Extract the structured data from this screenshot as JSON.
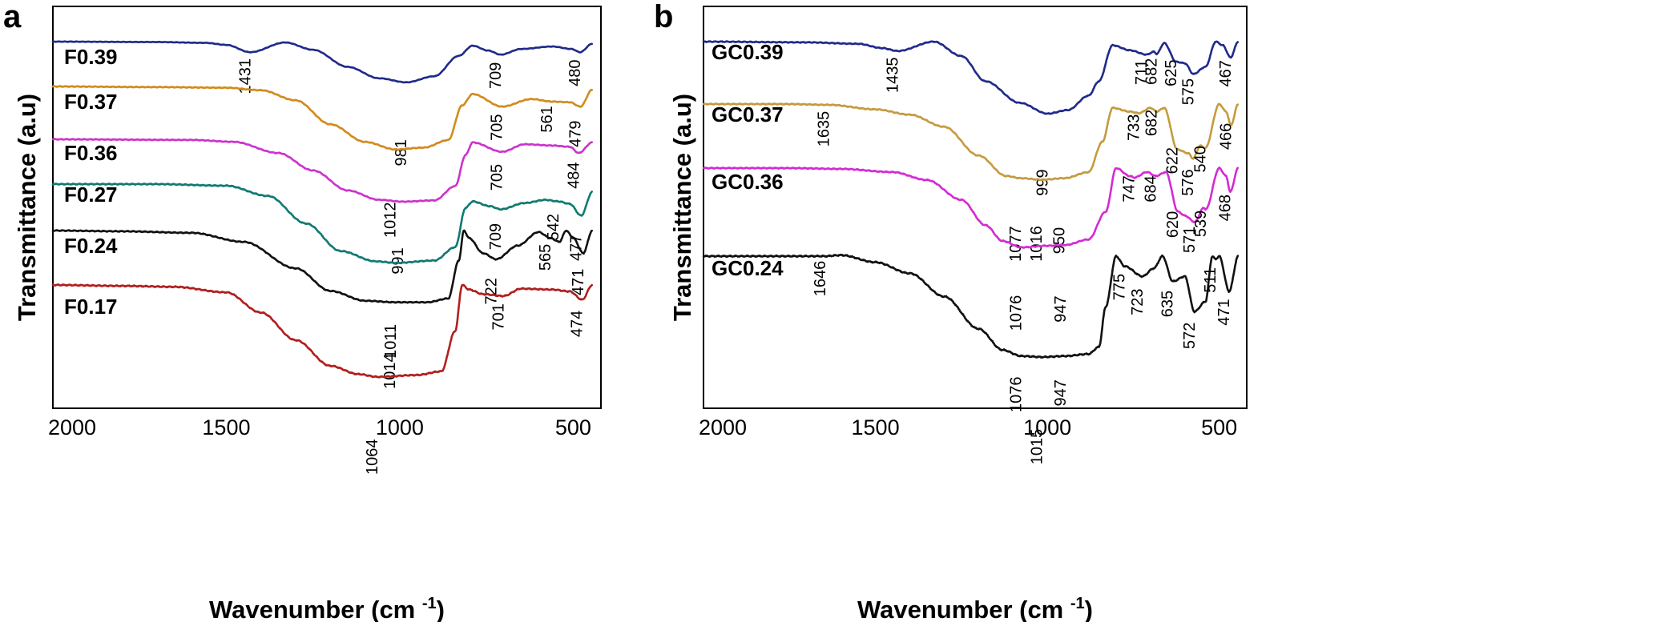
{
  "chart_data": [
    {
      "type": "line",
      "panel_letter": "a",
      "xlabel": "Wavenumber (cm",
      "xlabel_sup": "-1",
      "xlabel_close": ")",
      "ylabel": "Transmittance (a.u)",
      "xlim": [
        2000,
        420
      ],
      "x_ticks": [
        "2000",
        "1500",
        "1000",
        "500"
      ],
      "x_tick_values": [
        2000,
        1500,
        1000,
        500
      ],
      "series": [
        {
          "name": "F0.39",
          "color": "#1f2a8a",
          "baseline": 0.0,
          "depth": 0.62,
          "peaks": [
            "1431",
            "981",
            "709",
            "480"
          ],
          "profile": [
            [
              2000,
              0
            ],
            [
              1700,
              0.01
            ],
            [
              1560,
              0.03
            ],
            [
              1500,
              0.08
            ],
            [
              1431,
              0.26
            ],
            [
              1330,
              0.02
            ],
            [
              1250,
              0.2
            ],
            [
              1150,
              0.62
            ],
            [
              1060,
              0.9
            ],
            [
              981,
              1.0
            ],
            [
              900,
              0.85
            ],
            [
              830,
              0.35
            ],
            [
              790,
              0.1
            ],
            [
              745,
              0.22
            ],
            [
              709,
              0.32
            ],
            [
              650,
              0.18
            ],
            [
              560,
              0.12
            ],
            [
              505,
              0.18
            ],
            [
              480,
              0.26
            ],
            [
              445,
              0.05
            ]
          ]
        },
        {
          "name": "F0.37",
          "color": "#d18b1d",
          "baseline": 0.64,
          "depth": 0.96,
          "peaks": [
            "1012",
            "705",
            "561",
            "479"
          ],
          "profile": [
            [
              2000,
              0
            ],
            [
              1700,
              0.01
            ],
            [
              1500,
              0.02
            ],
            [
              1400,
              0.06
            ],
            [
              1300,
              0.22
            ],
            [
              1200,
              0.6
            ],
            [
              1100,
              0.88
            ],
            [
              1012,
              1.0
            ],
            [
              930,
              0.97
            ],
            [
              860,
              0.85
            ],
            [
              820,
              0.3
            ],
            [
              790,
              0.12
            ],
            [
              705,
              0.32
            ],
            [
              620,
              0.2
            ],
            [
              561,
              0.24
            ],
            [
              510,
              0.25
            ],
            [
              479,
              0.32
            ],
            [
              445,
              0.05
            ]
          ]
        },
        {
          "name": "F0.36",
          "color": "#cc33cc",
          "baseline": 0.98,
          "depth": 0.95,
          "peaks": [
            "991",
            "705",
            "484"
          ],
          "profile": [
            [
              2000,
              0
            ],
            [
              1600,
              0.01
            ],
            [
              1480,
              0.04
            ],
            [
              1350,
              0.22
            ],
            [
              1250,
              0.5
            ],
            [
              1150,
              0.82
            ],
            [
              1060,
              0.97
            ],
            [
              991,
              1.0
            ],
            [
              900,
              0.98
            ],
            [
              840,
              0.75
            ],
            [
              810,
              0.25
            ],
            [
              790,
              0.05
            ],
            [
              705,
              0.2
            ],
            [
              640,
              0.08
            ],
            [
              560,
              0.1
            ],
            [
              510,
              0.12
            ],
            [
              484,
              0.22
            ],
            [
              445,
              0.05
            ]
          ]
        },
        {
          "name": "F0.27",
          "color": "#107a72",
          "baseline": 1.0,
          "depth": 1.2,
          "peaks": [
            "1011",
            "709",
            "542",
            "477"
          ],
          "profile": [
            [
              2000,
              0
            ],
            [
              1700,
              0.0
            ],
            [
              1500,
              0.02
            ],
            [
              1380,
              0.15
            ],
            [
              1270,
              0.5
            ],
            [
              1170,
              0.85
            ],
            [
              1070,
              0.98
            ],
            [
              1011,
              1.0
            ],
            [
              900,
              0.97
            ],
            [
              840,
              0.8
            ],
            [
              810,
              0.3
            ],
            [
              790,
              0.22
            ],
            [
              740,
              0.28
            ],
            [
              709,
              0.32
            ],
            [
              640,
              0.24
            ],
            [
              580,
              0.2
            ],
            [
              542,
              0.22
            ],
            [
              510,
              0.25
            ],
            [
              477,
              0.4
            ],
            [
              445,
              0.1
            ]
          ]
        },
        {
          "name": "F0.24",
          "color": "#111111",
          "baseline": 1.72,
          "depth": 1.15,
          "peaks": [
            "1014",
            "722",
            "565",
            "471"
          ],
          "profile": [
            [
              2000,
              0
            ],
            [
              1800,
              0.01
            ],
            [
              1600,
              0.03
            ],
            [
              1450,
              0.15
            ],
            [
              1300,
              0.5
            ],
            [
              1200,
              0.8
            ],
            [
              1100,
              0.93
            ],
            [
              1014,
              0.95
            ],
            [
              920,
              0.95
            ],
            [
              860,
              0.9
            ],
            [
              830,
              0.4
            ],
            [
              815,
              0.0
            ],
            [
              800,
              0.1
            ],
            [
              760,
              0.3
            ],
            [
              722,
              0.38
            ],
            [
              660,
              0.2
            ],
            [
              600,
              0.02
            ],
            [
              565,
              0.1
            ],
            [
              540,
              0.15
            ],
            [
              520,
              0.0
            ],
            [
              500,
              0.1
            ],
            [
              471,
              0.3
            ],
            [
              445,
              0.0
            ]
          ]
        },
        {
          "name": "F0.17",
          "color": "#b01f1f",
          "baseline": 2.12,
          "depth": 1.4,
          "peaks": [
            "1064",
            "701",
            "474"
          ],
          "profile": [
            [
              2000,
              0
            ],
            [
              1800,
              0.01
            ],
            [
              1650,
              0.02
            ],
            [
              1500,
              0.08
            ],
            [
              1400,
              0.3
            ],
            [
              1300,
              0.6
            ],
            [
              1200,
              0.88
            ],
            [
              1120,
              0.97
            ],
            [
              1064,
              1.0
            ],
            [
              950,
              0.98
            ],
            [
              880,
              0.94
            ],
            [
              840,
              0.5
            ],
            [
              820,
              0.0
            ],
            [
              800,
              0.05
            ],
            [
              760,
              0.1
            ],
            [
              701,
              0.12
            ],
            [
              650,
              0.04
            ],
            [
              560,
              0.05
            ],
            [
              510,
              0.07
            ],
            [
              474,
              0.16
            ],
            [
              445,
              0.0
            ]
          ]
        }
      ]
    },
    {
      "type": "line",
      "panel_letter": "b",
      "xlabel": "Wavenumber (cm",
      "xlabel_sup": "-1",
      "xlabel_close": ")",
      "ylabel": "Transmittance (a.u)",
      "xlim": [
        2000,
        420
      ],
      "x_ticks": [
        "2000",
        "1500",
        "1000",
        "500"
      ],
      "x_tick_values": [
        2000,
        1500,
        1000,
        500
      ],
      "series": [
        {
          "name": "GC0.39",
          "color": "#1f2a8a",
          "baseline": 0.0,
          "depth": 1.0,
          "peaks": [
            "1435",
            "999",
            "711",
            "682",
            "625",
            "575",
            "467"
          ],
          "profile": [
            [
              2000,
              0
            ],
            [
              1700,
              0.01
            ],
            [
              1550,
              0.03
            ],
            [
              1480,
              0.09
            ],
            [
              1435,
              0.13
            ],
            [
              1330,
              0.0
            ],
            [
              1250,
              0.2
            ],
            [
              1180,
              0.55
            ],
            [
              1080,
              0.85
            ],
            [
              999,
              1.0
            ],
            [
              940,
              0.95
            ],
            [
              880,
              0.75
            ],
            [
              850,
              0.55
            ],
            [
              810,
              0.05
            ],
            [
              760,
              0.12
            ],
            [
              711,
              0.18
            ],
            [
              690,
              0.14
            ],
            [
              682,
              0.17
            ],
            [
              660,
              0.02
            ],
            [
              625,
              0.28
            ],
            [
              600,
              0.3
            ],
            [
              575,
              0.45
            ],
            [
              540,
              0.35
            ],
            [
              510,
              0.0
            ],
            [
              490,
              0.05
            ],
            [
              467,
              0.22
            ],
            [
              445,
              0.0
            ]
          ]
        },
        {
          "name": "GC0.37",
          "color": "#c49b3d",
          "baseline": 0.76,
          "depth": 1.05,
          "peaks": [
            "1635",
            "1077",
            "1016",
            "950",
            "733",
            "682",
            "622",
            "576",
            "540",
            "466"
          ],
          "profile": [
            [
              2000,
              0
            ],
            [
              1760,
              0.0
            ],
            [
              1635,
              0.01
            ],
            [
              1500,
              0.07
            ],
            [
              1400,
              0.14
            ],
            [
              1300,
              0.3
            ],
            [
              1200,
              0.68
            ],
            [
              1120,
              0.95
            ],
            [
              1077,
              0.98
            ],
            [
              1016,
              1.0
            ],
            [
              950,
              0.98
            ],
            [
              880,
              0.9
            ],
            [
              840,
              0.5
            ],
            [
              810,
              0.05
            ],
            [
              760,
              0.1
            ],
            [
              733,
              0.12
            ],
            [
              700,
              0.05
            ],
            [
              682,
              0.1
            ],
            [
              660,
              0.05
            ],
            [
              622,
              0.6
            ],
            [
              590,
              0.65
            ],
            [
              576,
              0.72
            ],
            [
              555,
              0.55
            ],
            [
              540,
              0.58
            ],
            [
              500,
              0.0
            ],
            [
              480,
              0.1
            ],
            [
              466,
              0.28
            ],
            [
              445,
              0.0
            ]
          ]
        },
        {
          "name": "GC0.36",
          "color": "#d42ad4",
          "baseline": 1.55,
          "depth": 1.1,
          "peaks": [
            "1076",
            "947",
            "747",
            "684",
            "620",
            "571",
            "539",
            "468"
          ],
          "profile": [
            [
              2000,
              0
            ],
            [
              1750,
              0.0
            ],
            [
              1600,
              0.01
            ],
            [
              1450,
              0.05
            ],
            [
              1350,
              0.15
            ],
            [
              1250,
              0.4
            ],
            [
              1180,
              0.72
            ],
            [
              1130,
              0.92
            ],
            [
              1076,
              1.0
            ],
            [
              1000,
              0.98
            ],
            [
              947,
              0.97
            ],
            [
              880,
              0.9
            ],
            [
              830,
              0.55
            ],
            [
              800,
              0.0
            ],
            [
              760,
              0.1
            ],
            [
              747,
              0.12
            ],
            [
              710,
              0.05
            ],
            [
              684,
              0.1
            ],
            [
              655,
              0.05
            ],
            [
              620,
              0.55
            ],
            [
              600,
              0.6
            ],
            [
              571,
              0.68
            ],
            [
              545,
              0.5
            ],
            [
              539,
              0.52
            ],
            [
              500,
              0.0
            ],
            [
              480,
              0.1
            ],
            [
              468,
              0.3
            ],
            [
              445,
              0.0
            ]
          ]
        },
        {
          "name": "GC0.24",
          "color": "#111111",
          "baseline": 2.08,
          "depth": 1.4,
          "peaks": [
            "1646",
            "1076",
            "1015",
            "947",
            "775",
            "723",
            "635",
            "572",
            "511",
            "471"
          ],
          "profile": [
            [
              2000,
              0
            ],
            [
              1800,
              0.0
            ],
            [
              1646,
              0.0
            ],
            [
              1600,
              -0.01
            ],
            [
              1500,
              0.06
            ],
            [
              1400,
              0.17
            ],
            [
              1300,
              0.4
            ],
            [
              1200,
              0.72
            ],
            [
              1130,
              0.93
            ],
            [
              1076,
              0.99
            ],
            [
              1015,
              1.0
            ],
            [
              947,
              0.99
            ],
            [
              880,
              0.97
            ],
            [
              850,
              0.9
            ],
            [
              830,
              0.5
            ],
            [
              800,
              0.0
            ],
            [
              775,
              0.1
            ],
            [
              723,
              0.2
            ],
            [
              690,
              0.12
            ],
            [
              665,
              0.0
            ],
            [
              635,
              0.25
            ],
            [
              600,
              0.2
            ],
            [
              572,
              0.55
            ],
            [
              540,
              0.45
            ],
            [
              520,
              0.0
            ],
            [
              511,
              0.03
            ],
            [
              500,
              0.0
            ],
            [
              471,
              0.35
            ],
            [
              445,
              0.0
            ]
          ]
        }
      ]
    }
  ]
}
